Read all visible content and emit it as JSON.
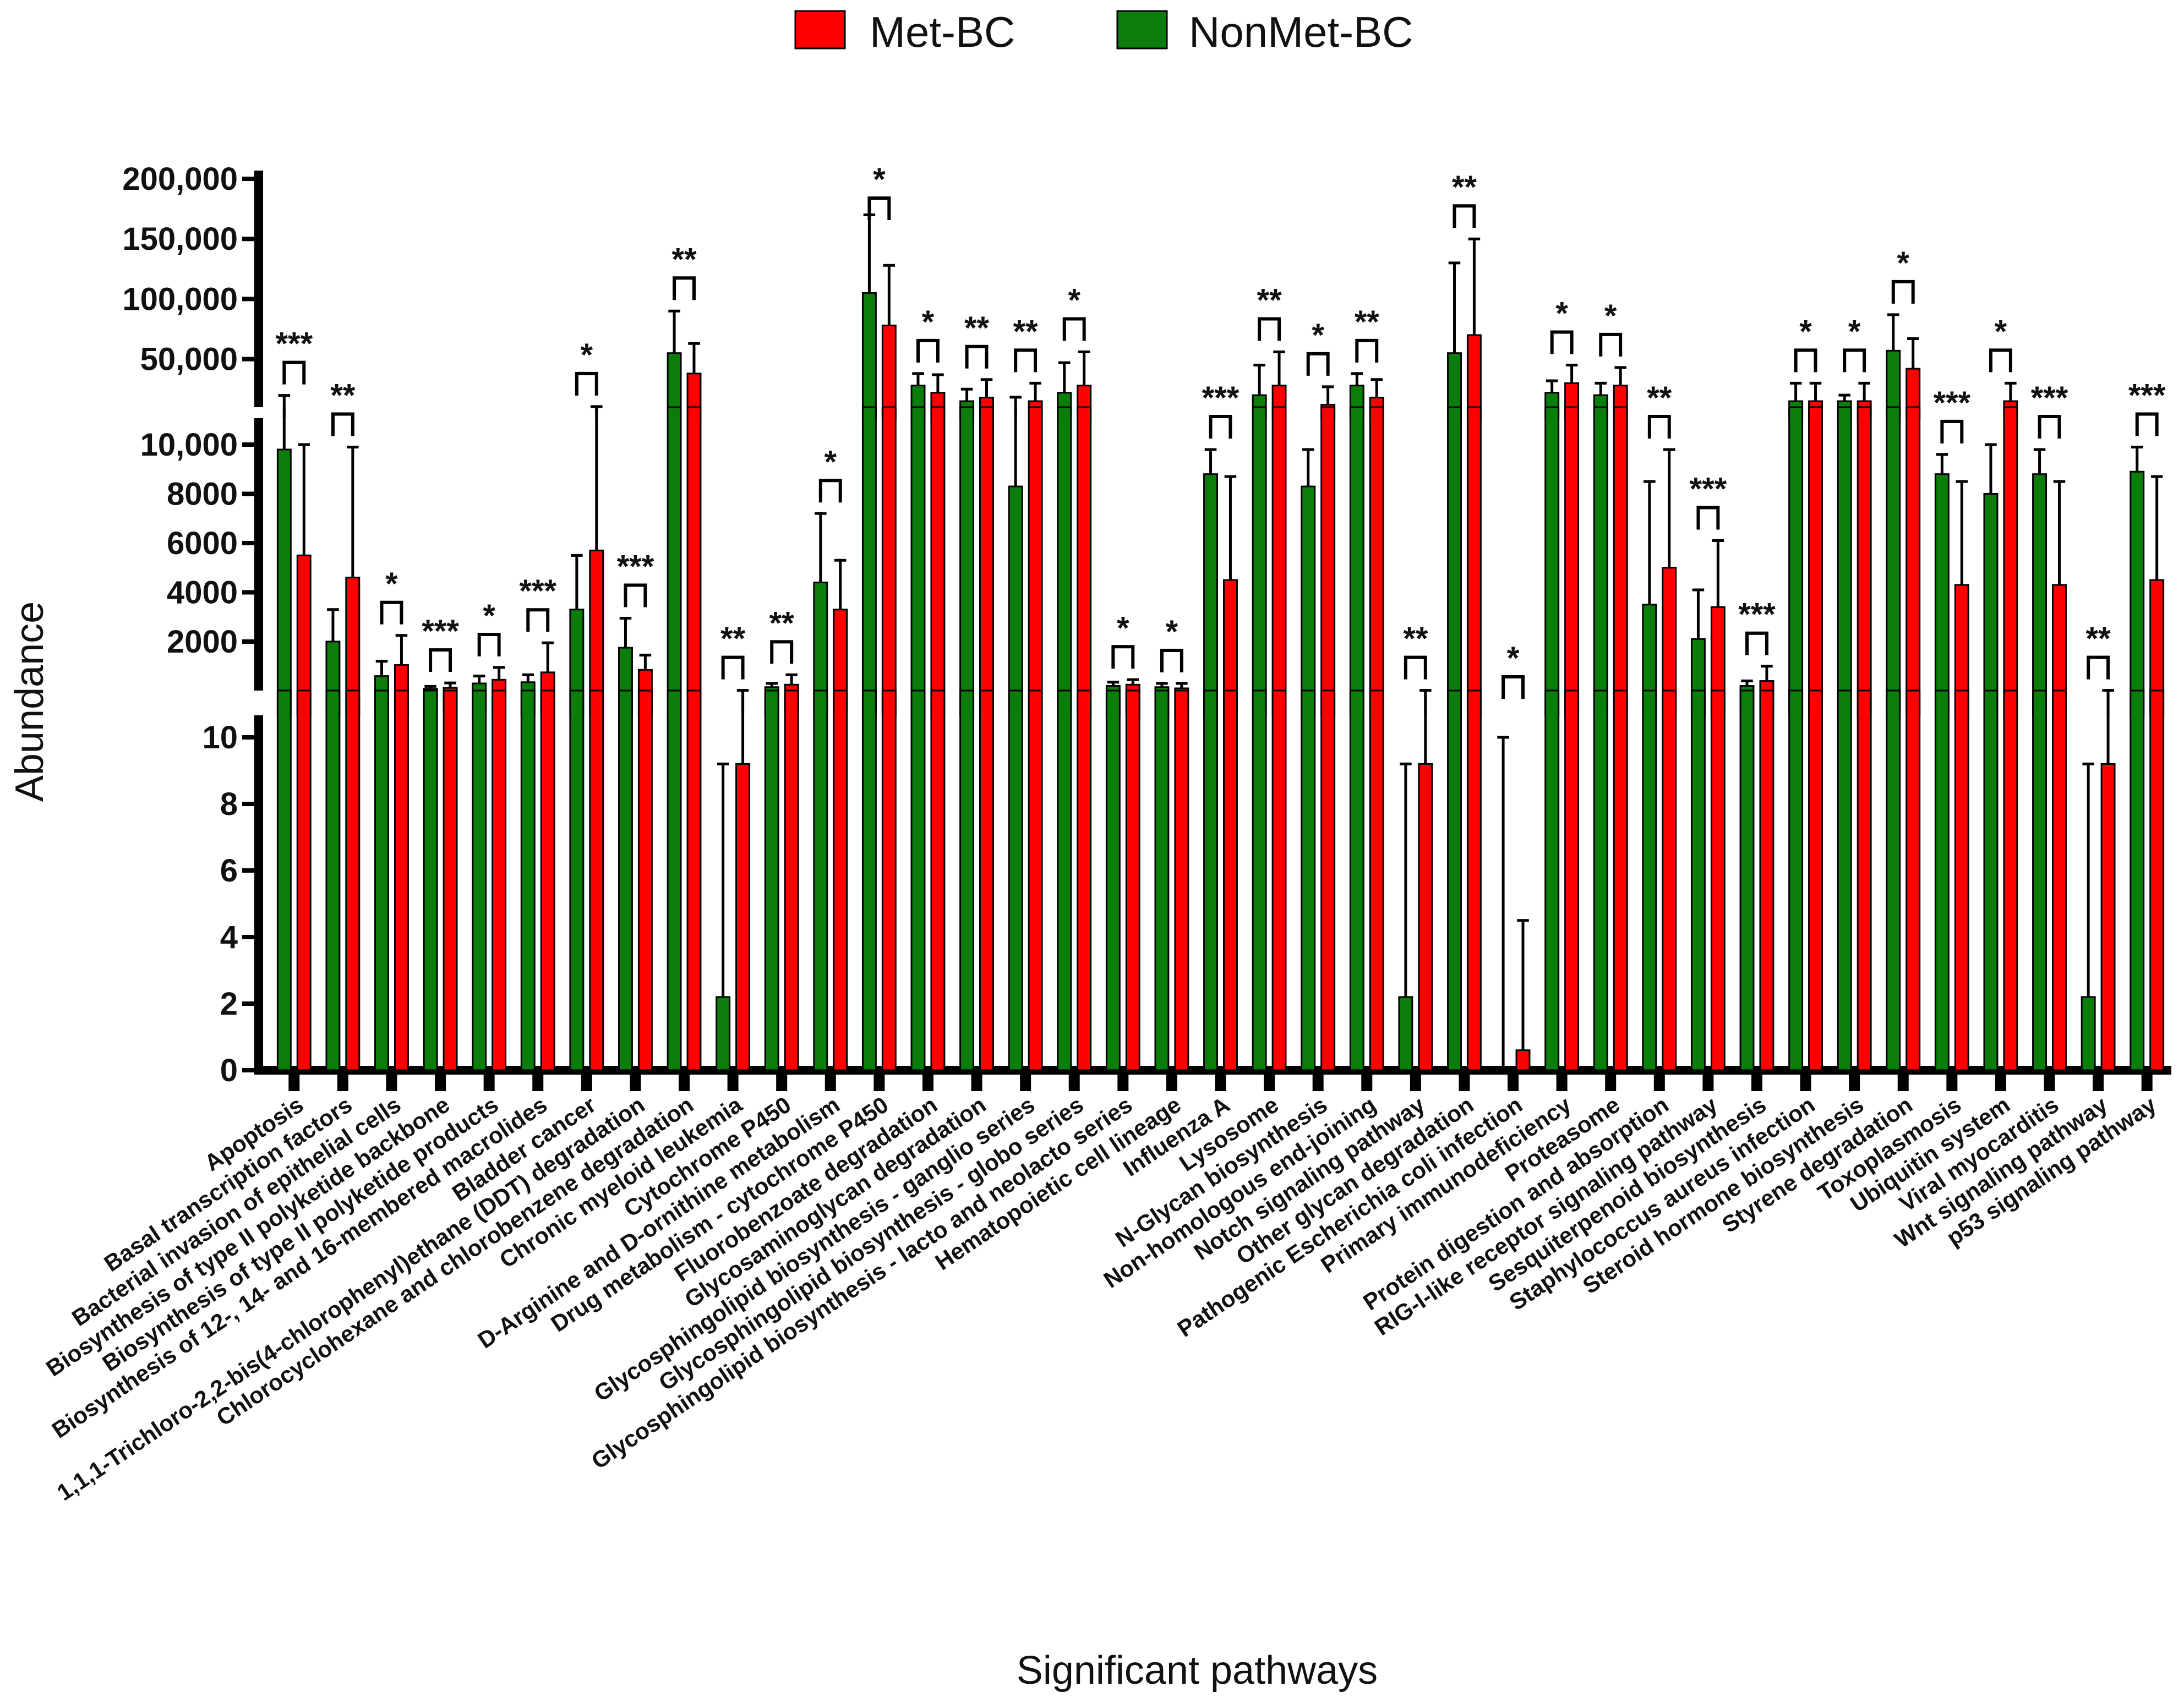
{
  "chart_data": {
    "type": "bar",
    "title": "",
    "xlabel": "Significant pathways",
    "ylabel": "Abundance",
    "y_axis": {
      "broken": true,
      "segments": [
        {
          "range": [
            0,
            10
          ],
          "ticks": [
            0,
            2,
            4,
            6,
            8,
            10
          ],
          "tick_labels": [
            "0",
            "2",
            "4",
            "6",
            "8",
            "10"
          ]
        },
        {
          "range": [
            10,
            10000
          ],
          "ticks": [
            2000,
            4000,
            6000,
            8000,
            10000
          ],
          "tick_labels": [
            "2000",
            "4000",
            "6000",
            "8000",
            "10,000"
          ]
        },
        {
          "range": [
            10000,
            200000
          ],
          "ticks": [
            50000,
            100000,
            150000,
            200000
          ],
          "tick_labels": [
            "50,000",
            "100,000",
            "150,000",
            "200,000"
          ]
        }
      ]
    },
    "legend": [
      {
        "name": "Met-BC",
        "color": "#ff0000"
      },
      {
        "name": "NonMet-BC",
        "color": "#0a7d0a"
      }
    ],
    "legend_position": "top-center",
    "categories": [
      "Apoptosis",
      "Basal transcription factors",
      "Bacterial invasion of epithelial cells",
      "Biosynthesis of type II polyketide backbone",
      "Biosynthesis of type II polyketide products",
      "Biosynthesis of 12-, 14- and 16-membered macrolides",
      "Bladder cancer",
      "1,1,1-Trichloro-2,2-bis(4-chlorophenyl)ethane (DDT) degradation",
      "Chlorocyclohexane and chlorobenzene degradation",
      "Chronic myeloid leukemia",
      "Cytochrome P450",
      "D-Arginine and D-ornithine metabolism",
      "Drug metabolism - cytochrome P450",
      "Fluorobenzoate degradation",
      "Glycosaminoglycan degradation",
      "Glycosphingolipid biosynthesis - ganglio series",
      "Glycosphingolipid biosynthesis - globo series",
      "Glycosphingolipid biosynthesis - lacto and neolacto series",
      "Hematopoietic cell lineage",
      "Influenza A",
      "Lysosome",
      "N-Glycan biosynthesis",
      "Non-homologous end-joining",
      "Notch signaling pathway",
      "Other glycan degradation",
      "Pathogenic Escherichia coli infection",
      "Primary immunodeficiency",
      "Proteasome",
      "Protein digestion and absorption",
      "RIG-I-like receptor signaling pathway",
      "Sesquiterpenoid biosynthesis",
      "Staphylococcus aureus infection",
      "Steroid hormone biosynthesis",
      "Styrene degradation",
      "Toxoplasmosis",
      "Ubiquitin system",
      "Viral myocarditis",
      "Wnt signaling pathway",
      "p53 signaling pathway"
    ],
    "series": [
      {
        "name": "NonMet-BC",
        "color": "#0a7d0a",
        "values": [
          9800,
          2000,
          600,
          80,
          300,
          350,
          3300,
          1750,
          55000,
          2.2,
          150,
          4400,
          105000,
          28000,
          15000,
          8300,
          22000,
          200,
          150,
          8800,
          20000,
          8300,
          28000,
          2.2,
          55000,
          0,
          22000,
          20000,
          3500,
          2100,
          200,
          15000,
          15000,
          57000,
          8800,
          8000,
          8800,
          2.2,
          8900
        ],
        "errors": [
          10000,
          1300,
          600,
          100,
          300,
          300,
          2200,
          1200,
          35000,
          7.0,
          150,
          2800,
          65000,
          10000,
          10000,
          10000,
          25000,
          150,
          150,
          1000,
          25000,
          1500,
          10000,
          7.0,
          75000,
          10,
          10000,
          10000,
          5000,
          2000,
          200,
          15000,
          5000,
          30000,
          800,
          2000,
          1000,
          7.0,
          1000
        ]
      },
      {
        "name": "Met-BC",
        "color": "#ff0000",
        "values": [
          5500,
          4600,
          1050,
          120,
          450,
          750,
          5700,
          850,
          38000,
          9.2,
          250,
          3300,
          78000,
          22000,
          18000,
          15000,
          28000,
          250,
          100,
          4500,
          28000,
          12000,
          18000,
          9.2,
          70000,
          0.6,
          30000,
          28000,
          5000,
          3400,
          400,
          15000,
          15000,
          42000,
          4300,
          15000,
          4300,
          9.2,
          4500
        ],
        "errors": [
          4500,
          5300,
          1200,
          200,
          500,
          1200,
          4800,
          600,
          25000,
          10,
          400,
          2000,
          50000,
          15000,
          15000,
          15000,
          28000,
          200,
          200,
          4200,
          28000,
          15000,
          15000,
          10,
          80000,
          3.9,
          15000,
          15000,
          4800,
          2700,
          600,
          15000,
          15000,
          25000,
          4200,
          15000,
          4200,
          10,
          4200
        ]
      }
    ],
    "significance": [
      "***",
      "**",
      "*",
      "***",
      "*",
      "***",
      "*",
      "***",
      "**",
      "**",
      "**",
      "*",
      "*",
      "*",
      "**",
      "**",
      "*",
      "*",
      "*",
      "***",
      "**",
      "*",
      "**",
      "**",
      "**",
      "*",
      "*",
      "*",
      "**",
      "***",
      "***",
      "*",
      "*",
      "*",
      "***",
      "*",
      "***",
      "**",
      "***"
    ]
  }
}
